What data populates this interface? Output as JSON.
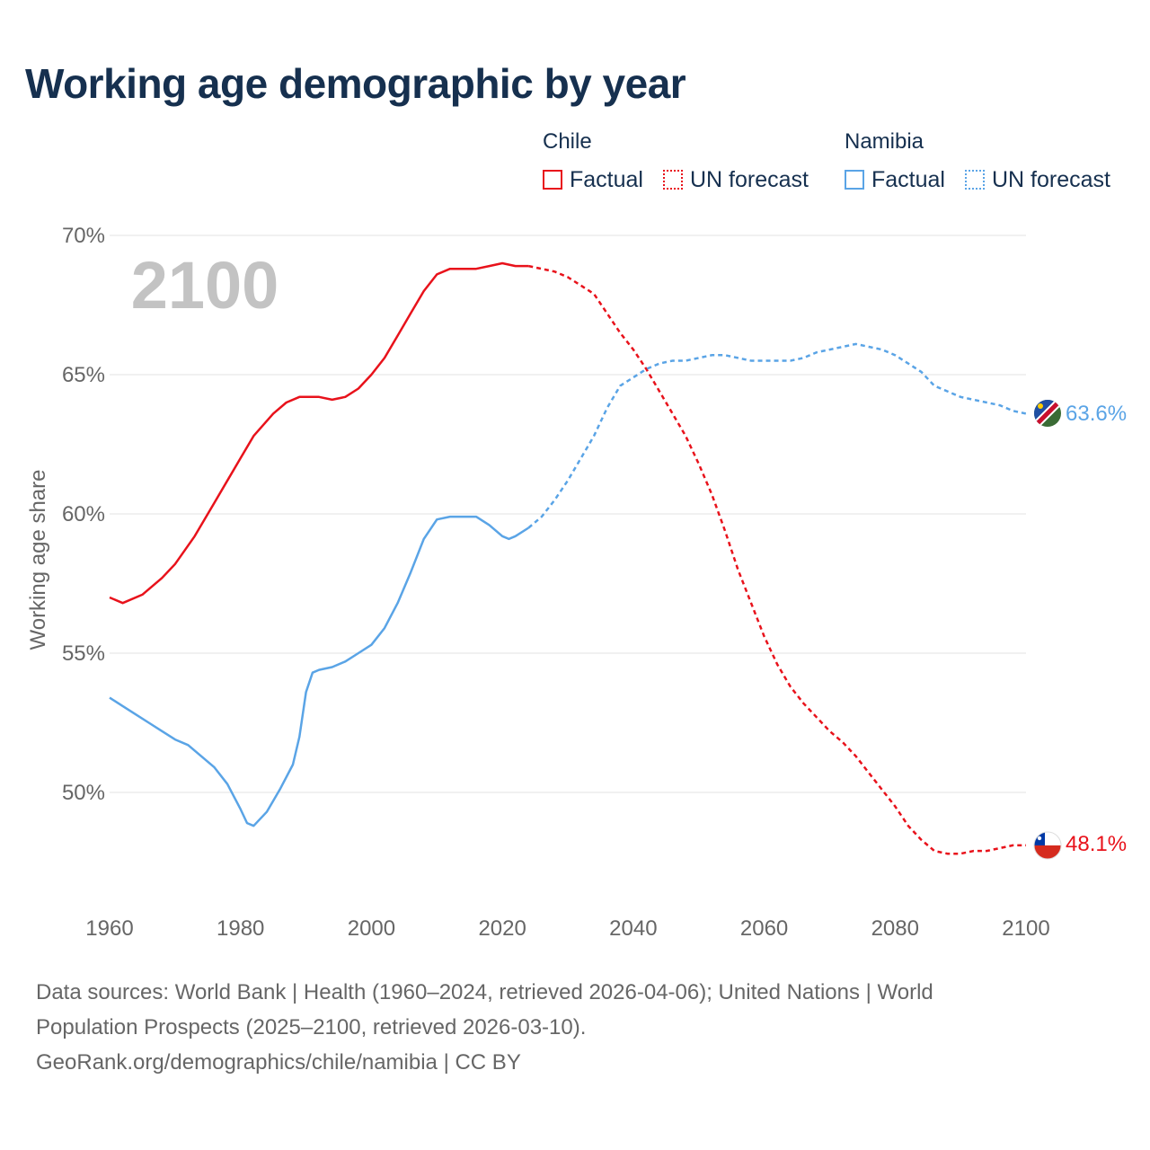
{
  "title": "Working age demographic by year",
  "legend": {
    "groups": [
      {
        "country": "Chile",
        "factual": "Factual",
        "forecast": "UN forecast",
        "color": "#e8121b"
      },
      {
        "country": "Namibia",
        "factual": "Factual",
        "forecast": "UN forecast",
        "color": "#5aa4e6"
      }
    ]
  },
  "year_watermark": "2100",
  "sources": {
    "line1": "Data sources: World Bank | Health (1960–2024, retrieved 2026-04-06); United Nations | World",
    "line2": "Population Prospects (2025–2100, retrieved 2026-03-10).",
    "line3": "GeoRank.org/demographics/chile/namibia | CC BY"
  },
  "chart_data": {
    "type": "line",
    "title": "Working age demographic by year",
    "xlabel": "",
    "ylabel": "Working age share",
    "xlim": [
      1960,
      2100
    ],
    "ylim": [
      46.0,
      70.0
    ],
    "x_ticks": [
      "1960",
      "1980",
      "2000",
      "2020",
      "2040",
      "2060",
      "2080",
      "2100"
    ],
    "y_ticks": [
      "50%",
      "55%",
      "60%",
      "65%",
      "70%"
    ],
    "forecast_start_year": 2024,
    "series": [
      {
        "name": "Chile",
        "color": "#e8121b",
        "end_label": "48.1%",
        "points": [
          [
            1960,
            57.0
          ],
          [
            1962,
            56.8
          ],
          [
            1965,
            57.1
          ],
          [
            1968,
            57.7
          ],
          [
            1970,
            58.2
          ],
          [
            1973,
            59.2
          ],
          [
            1976,
            60.4
          ],
          [
            1980,
            62.0
          ],
          [
            1982,
            62.8
          ],
          [
            1985,
            63.6
          ],
          [
            1987,
            64.0
          ],
          [
            1989,
            64.2
          ],
          [
            1992,
            64.2
          ],
          [
            1994,
            64.1
          ],
          [
            1996,
            64.2
          ],
          [
            1998,
            64.5
          ],
          [
            2000,
            65.0
          ],
          [
            2002,
            65.6
          ],
          [
            2004,
            66.4
          ],
          [
            2006,
            67.2
          ],
          [
            2008,
            68.0
          ],
          [
            2010,
            68.6
          ],
          [
            2012,
            68.8
          ],
          [
            2014,
            68.8
          ],
          [
            2016,
            68.8
          ],
          [
            2018,
            68.9
          ],
          [
            2020,
            69.0
          ],
          [
            2022,
            68.9
          ],
          [
            2024,
            68.9
          ],
          [
            2026,
            68.8
          ],
          [
            2028,
            68.7
          ],
          [
            2030,
            68.5
          ],
          [
            2032,
            68.2
          ],
          [
            2034,
            67.9
          ],
          [
            2036,
            67.2
          ],
          [
            2038,
            66.5
          ],
          [
            2040,
            65.9
          ],
          [
            2042,
            65.2
          ],
          [
            2044,
            64.4
          ],
          [
            2046,
            63.6
          ],
          [
            2048,
            62.8
          ],
          [
            2050,
            61.8
          ],
          [
            2052,
            60.7
          ],
          [
            2054,
            59.4
          ],
          [
            2056,
            58.0
          ],
          [
            2058,
            56.8
          ],
          [
            2060,
            55.6
          ],
          [
            2062,
            54.6
          ],
          [
            2064,
            53.8
          ],
          [
            2066,
            53.2
          ],
          [
            2068,
            52.7
          ],
          [
            2070,
            52.2
          ],
          [
            2072,
            51.8
          ],
          [
            2074,
            51.3
          ],
          [
            2076,
            50.7
          ],
          [
            2078,
            50.1
          ],
          [
            2080,
            49.5
          ],
          [
            2082,
            48.8
          ],
          [
            2084,
            48.3
          ],
          [
            2086,
            47.9
          ],
          [
            2088,
            47.8
          ],
          [
            2090,
            47.8
          ],
          [
            2092,
            47.9
          ],
          [
            2094,
            47.9
          ],
          [
            2096,
            48.0
          ],
          [
            2098,
            48.1
          ],
          [
            2100,
            48.1
          ]
        ]
      },
      {
        "name": "Namibia",
        "color": "#5aa4e6",
        "end_label": "63.6%",
        "points": [
          [
            1960,
            53.4
          ],
          [
            1962,
            53.1
          ],
          [
            1964,
            52.8
          ],
          [
            1966,
            52.5
          ],
          [
            1968,
            52.2
          ],
          [
            1970,
            51.9
          ],
          [
            1972,
            51.7
          ],
          [
            1974,
            51.3
          ],
          [
            1976,
            50.9
          ],
          [
            1978,
            50.3
          ],
          [
            1980,
            49.4
          ],
          [
            1981,
            48.9
          ],
          [
            1982,
            48.8
          ],
          [
            1984,
            49.3
          ],
          [
            1986,
            50.1
          ],
          [
            1988,
            51.0
          ],
          [
            1989,
            52.0
          ],
          [
            1990,
            53.6
          ],
          [
            1991,
            54.3
          ],
          [
            1992,
            54.4
          ],
          [
            1994,
            54.5
          ],
          [
            1996,
            54.7
          ],
          [
            1998,
            55.0
          ],
          [
            2000,
            55.3
          ],
          [
            2002,
            55.9
          ],
          [
            2004,
            56.8
          ],
          [
            2006,
            57.9
          ],
          [
            2008,
            59.1
          ],
          [
            2010,
            59.8
          ],
          [
            2012,
            59.9
          ],
          [
            2014,
            59.9
          ],
          [
            2016,
            59.9
          ],
          [
            2018,
            59.6
          ],
          [
            2020,
            59.2
          ],
          [
            2021,
            59.1
          ],
          [
            2022,
            59.2
          ],
          [
            2024,
            59.5
          ],
          [
            2026,
            59.9
          ],
          [
            2028,
            60.5
          ],
          [
            2030,
            61.2
          ],
          [
            2032,
            62.0
          ],
          [
            2034,
            62.8
          ],
          [
            2036,
            63.8
          ],
          [
            2038,
            64.6
          ],
          [
            2040,
            64.9
          ],
          [
            2042,
            65.2
          ],
          [
            2044,
            65.4
          ],
          [
            2046,
            65.5
          ],
          [
            2048,
            65.5
          ],
          [
            2050,
            65.6
          ],
          [
            2052,
            65.7
          ],
          [
            2054,
            65.7
          ],
          [
            2056,
            65.6
          ],
          [
            2058,
            65.5
          ],
          [
            2060,
            65.5
          ],
          [
            2062,
            65.5
          ],
          [
            2064,
            65.5
          ],
          [
            2066,
            65.6
          ],
          [
            2068,
            65.8
          ],
          [
            2070,
            65.9
          ],
          [
            2072,
            66.0
          ],
          [
            2074,
            66.1
          ],
          [
            2076,
            66.0
          ],
          [
            2078,
            65.9
          ],
          [
            2080,
            65.7
          ],
          [
            2082,
            65.4
          ],
          [
            2084,
            65.1
          ],
          [
            2086,
            64.6
          ],
          [
            2088,
            64.4
          ],
          [
            2090,
            64.2
          ],
          [
            2092,
            64.1
          ],
          [
            2094,
            64.0
          ],
          [
            2096,
            63.9
          ],
          [
            2098,
            63.7
          ],
          [
            2100,
            63.6
          ]
        ]
      }
    ]
  }
}
